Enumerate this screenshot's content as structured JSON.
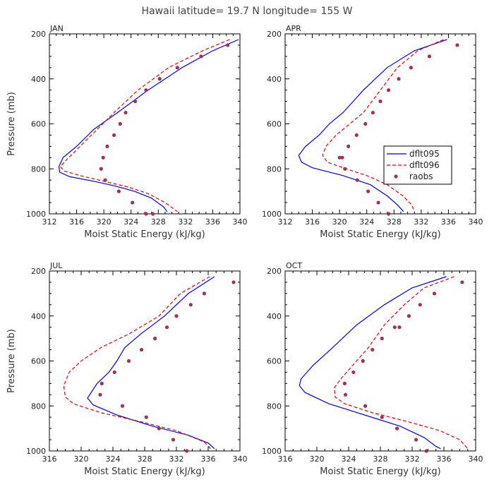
{
  "title": "Hawaii  latitude= 19.7 N longitude= 155 W",
  "colors": {
    "dflt095": "#0000ee",
    "dflt096": "#ee0000",
    "raobs": "#a0305a",
    "axis": "#000000"
  },
  "legend": {
    "entries": [
      {
        "name": "dflt095",
        "style": "solid"
      },
      {
        "name": "dflt096",
        "style": "dashed"
      },
      {
        "name": "raobs",
        "style": "dots"
      }
    ]
  },
  "chart_data": [
    {
      "type": "line",
      "panel": "JAN",
      "xlabel": "Moist Static Energy (kJ/kg)",
      "ylabel": "Pressure (mb)",
      "xlim": [
        312,
        340
      ],
      "ylim": [
        1000,
        200
      ],
      "xticks": [
        "312",
        "316",
        "320",
        "324",
        "328",
        "332",
        "336",
        "340"
      ],
      "yticks": [
        "200",
        "400",
        "600",
        "800",
        "1000"
      ],
      "series": [
        {
          "name": "dflt095",
          "x": [
            339.8,
            336,
            331.5,
            326.5,
            322,
            318.5,
            316,
            314,
            313.4,
            313.5,
            315,
            318.5,
            321.5,
            324.5,
            327,
            328.8,
            329.3
          ],
          "y": [
            225,
            275,
            350,
            450,
            550,
            625,
            700,
            750,
            790,
            815,
            835,
            855,
            875,
            900,
            930,
            970,
            990
          ]
        },
        {
          "name": "dflt096",
          "x": [
            338.5,
            334.5,
            329.5,
            325,
            321.5,
            319,
            316.5,
            314.5,
            313.6,
            314.2,
            316.5,
            320,
            323.5,
            326.5,
            329,
            330.8
          ],
          "y": [
            225,
            275,
            350,
            450,
            550,
            625,
            700,
            760,
            790,
            810,
            830,
            855,
            880,
            910,
            950,
            990
          ]
        },
        {
          "name": "raobs",
          "type": "scatter",
          "x": [
            338.2,
            334.3,
            330.8,
            328.2,
            326.2,
            324.6,
            323.2,
            322.4,
            321.5,
            320.5,
            319.9,
            319.6,
            320.2,
            322.2,
            324.2,
            326.2,
            327.2
          ],
          "y": [
            250,
            300,
            350,
            400,
            450,
            500,
            550,
            600,
            650,
            700,
            750,
            800,
            850,
            900,
            950,
            1000,
            1000
          ]
        }
      ]
    },
    {
      "type": "line",
      "panel": "APR",
      "xlabel": "Moist Static Energy (kJ/kg)",
      "ylabel": "Pressure (mb)",
      "xlim": [
        312,
        340
      ],
      "ylim": [
        1000,
        200
      ],
      "xticks": [
        "312",
        "316",
        "320",
        "324",
        "328",
        "332",
        "336",
        "340"
      ],
      "yticks": [
        "200",
        "400",
        "600",
        "800",
        "1000"
      ],
      "series": [
        {
          "name": "dflt095",
          "x": [
            335.8,
            331,
            327,
            323.5,
            320.5,
            318.5,
            317,
            315,
            314,
            314.4,
            316,
            320.5,
            324.5,
            327,
            328.5,
            329.4
          ],
          "y": [
            225,
            275,
            350,
            450,
            550,
            600,
            650,
            700,
            740,
            770,
            795,
            830,
            870,
            920,
            960,
            990
          ]
        },
        {
          "name": "dflt096",
          "x": [
            335.3,
            331.5,
            328.5,
            326,
            323.5,
            321.5,
            319.5,
            318,
            317.5,
            318.2,
            320.5,
            324,
            327,
            329.3,
            330.6,
            331
          ],
          "y": [
            225,
            275,
            350,
            450,
            550,
            600,
            650,
            700,
            740,
            770,
            795,
            830,
            870,
            920,
            960,
            990
          ]
        },
        {
          "name": "raobs",
          "type": "scatter",
          "x": [
            337.3,
            333.2,
            330.5,
            328.7,
            327.2,
            326,
            324.9,
            323.8,
            322.5,
            321.3,
            320.4,
            320,
            320.8,
            322.6,
            324.2,
            325.7,
            327.2
          ],
          "y": [
            250,
            300,
            350,
            400,
            450,
            500,
            550,
            600,
            650,
            700,
            750,
            750,
            800,
            850,
            900,
            950,
            1000
          ]
        }
      ]
    },
    {
      "type": "line",
      "panel": "JUL",
      "xlabel": "Moist Static Energy (kJ/kg)",
      "ylabel": "Pressure (mb)",
      "xlim": [
        316,
        340
      ],
      "ylim": [
        1000,
        200
      ],
      "xticks": [
        "316",
        "320",
        "324",
        "328",
        "332",
        "336",
        "340"
      ],
      "yticks": [
        "200",
        "400",
        "600",
        "800",
        "1000"
      ],
      "series": [
        {
          "name": "dflt095",
          "x": [
            336.8,
            333.5,
            330.5,
            327.5,
            325.5,
            324.5,
            323.5,
            322,
            320.8,
            321.5,
            324.5,
            329,
            333.5,
            336,
            336.8
          ],
          "y": [
            225,
            300,
            400,
            480,
            540,
            600,
            650,
            700,
            765,
            795,
            840,
            890,
            930,
            965,
            990
          ]
        },
        {
          "name": "dflt096",
          "x": [
            336.2,
            332.5,
            329.8,
            326,
            322.5,
            320,
            318.5,
            317.8,
            318,
            319,
            322.5,
            327.5,
            332,
            335.5,
            336.3
          ],
          "y": [
            225,
            300,
            400,
            480,
            540,
            600,
            650,
            710,
            760,
            790,
            830,
            870,
            910,
            960,
            990
          ]
        },
        {
          "name": "raobs",
          "type": "scatter",
          "x": [
            339.2,
            335.5,
            333.8,
            332,
            330.8,
            329.3,
            327.6,
            326,
            324.2,
            322.6,
            322.4,
            325.2,
            328.2,
            329.8,
            331.6,
            333.3
          ],
          "y": [
            250,
            300,
            350,
            400,
            450,
            500,
            550,
            600,
            650,
            700,
            750,
            800,
            850,
            900,
            950,
            1000
          ]
        }
      ]
    },
    {
      "type": "line",
      "panel": "OCT",
      "xlabel": "Moist Static Energy (kJ/kg)",
      "ylabel": "Pressure (mb)",
      "xlim": [
        316,
        340
      ],
      "ylim": [
        1000,
        200
      ],
      "xticks": [
        "316",
        "320",
        "324",
        "328",
        "332",
        "336",
        "340"
      ],
      "yticks": [
        "200",
        "400",
        "600",
        "800",
        "1000"
      ],
      "series": [
        {
          "name": "dflt095",
          "x": [
            336.3,
            332,
            328.5,
            325,
            322,
            319.5,
            318,
            317.8,
            318.5,
            321.5,
            326,
            330.5,
            333.5,
            335,
            335.6
          ],
          "y": [
            225,
            275,
            350,
            440,
            540,
            620,
            680,
            710,
            740,
            790,
            840,
            890,
            940,
            980,
            990
          ]
        },
        {
          "name": "dflt096",
          "x": [
            337.3,
            333.5,
            331,
            328.5,
            326.5,
            324.5,
            323,
            322.2,
            322.3,
            323.5,
            327,
            331.5,
            335.5,
            338,
            339
          ],
          "y": [
            225,
            275,
            350,
            440,
            540,
            620,
            680,
            720,
            760,
            790,
            830,
            870,
            910,
            950,
            990
          ]
        },
        {
          "name": "raobs",
          "type": "scatter",
          "x": [
            338.3,
            334.8,
            333,
            331.6,
            330.4,
            329.8,
            328.2,
            327,
            325.8,
            324.6,
            323.5,
            323.6,
            326.1,
            328.2,
            330.1,
            332.5,
            333.8
          ],
          "y": [
            250,
            300,
            350,
            400,
            450,
            450,
            500,
            550,
            600,
            650,
            700,
            750,
            800,
            850,
            900,
            950,
            1000
          ]
        }
      ]
    }
  ]
}
